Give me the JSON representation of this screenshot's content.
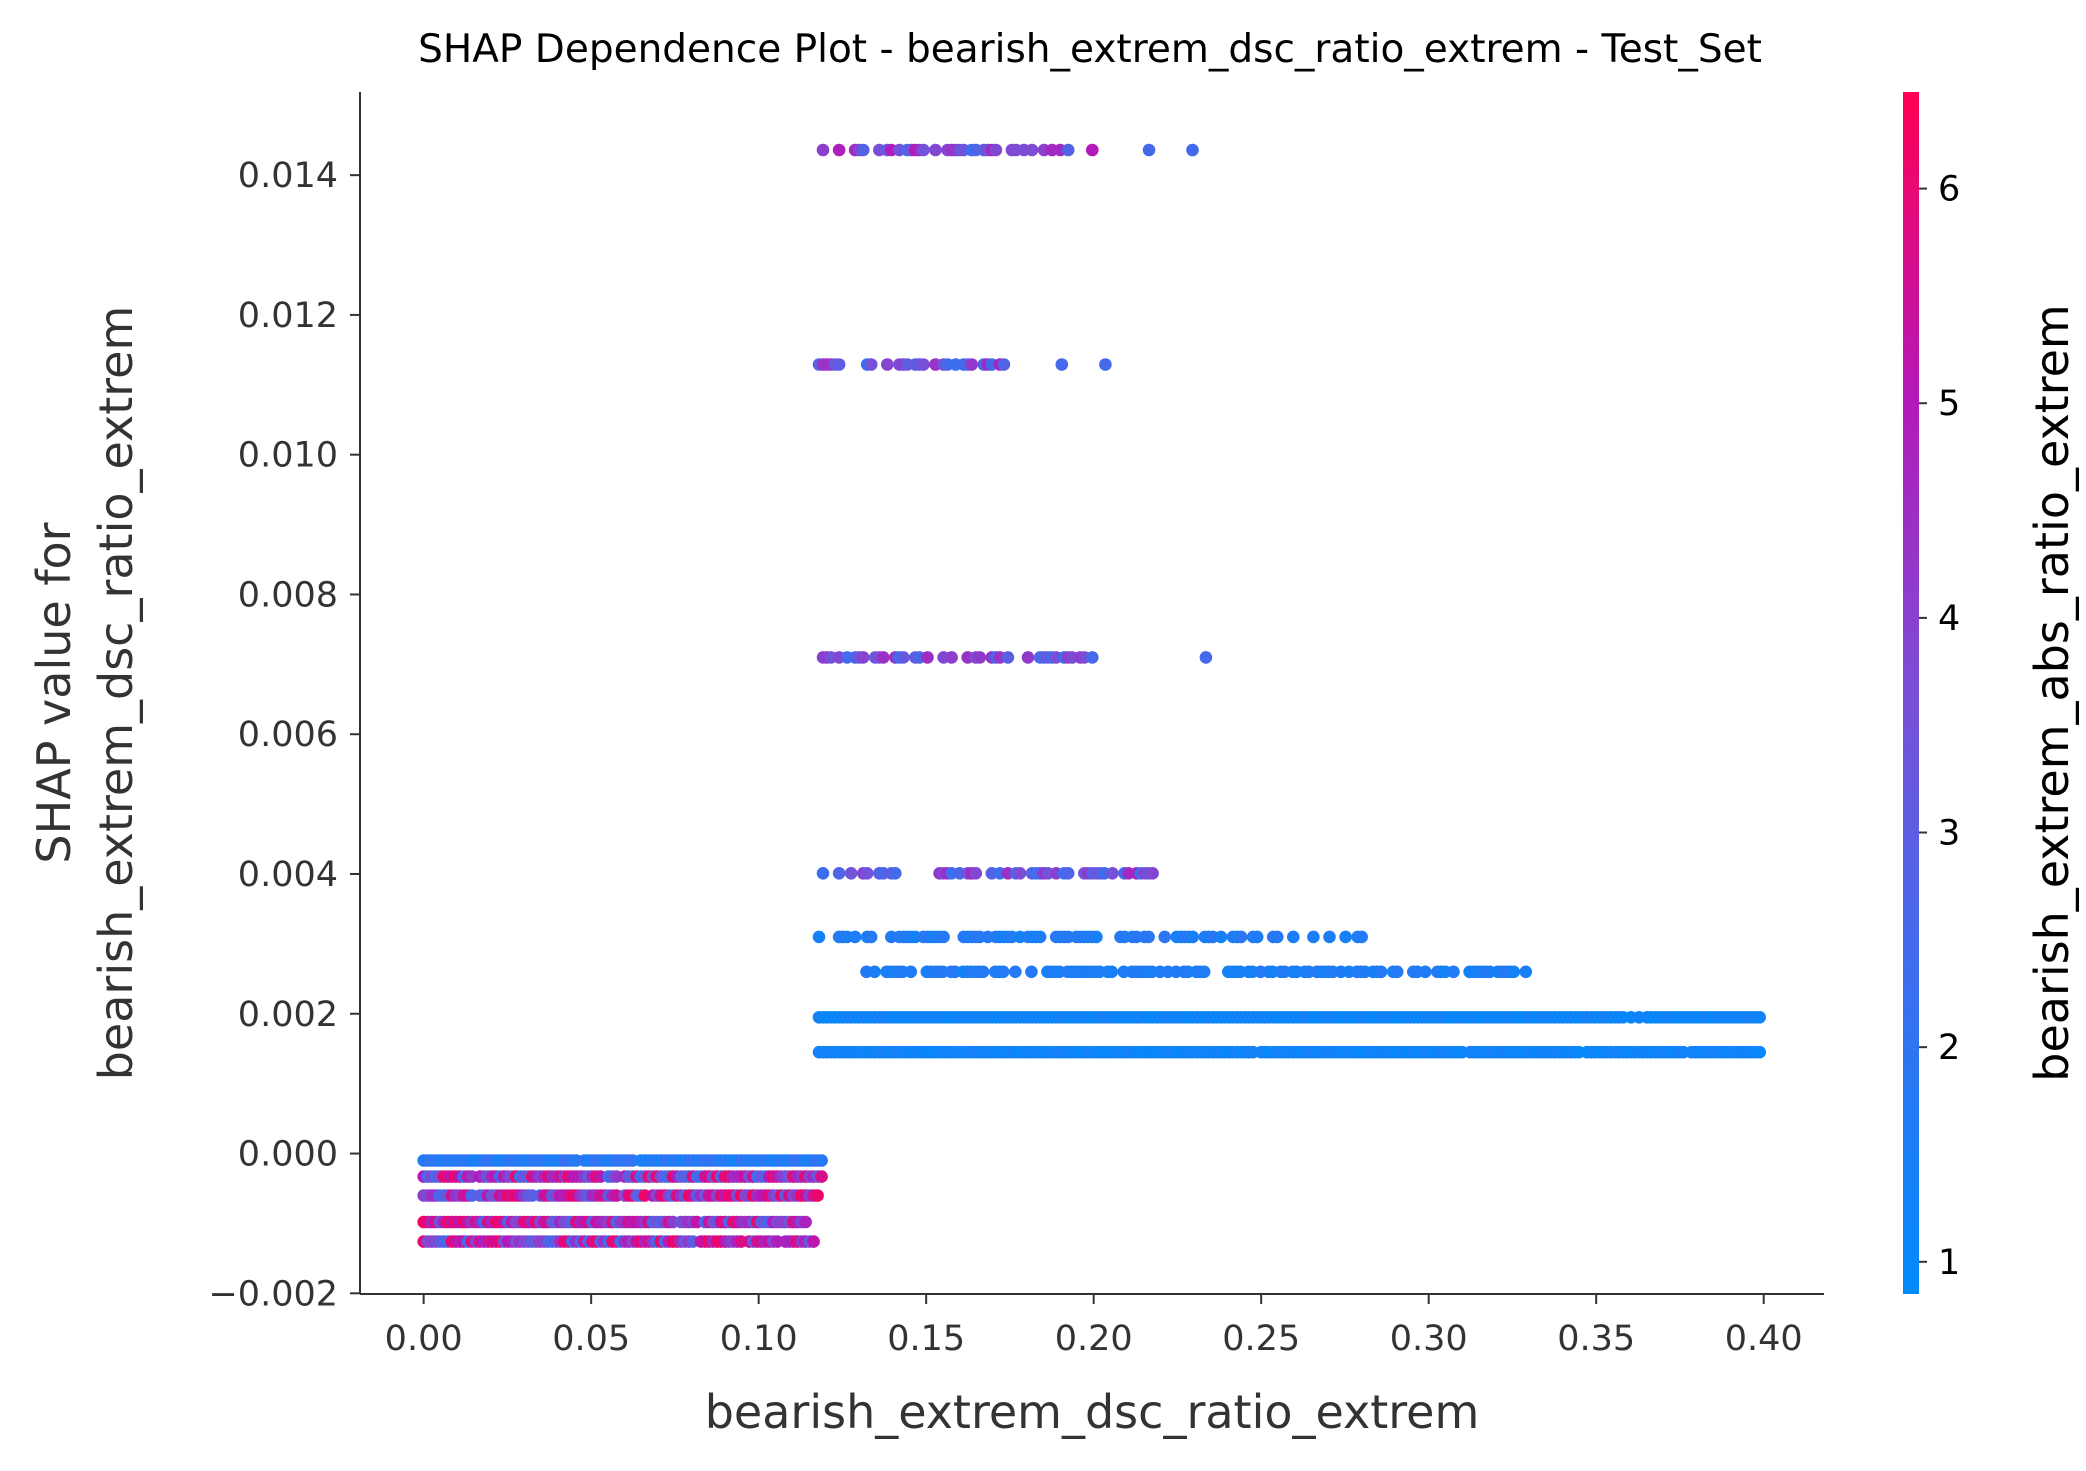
{
  "chart_data": {
    "type": "scatter",
    "title": "SHAP Dependence Plot - bearish_extrem_dsc_ratio_extrem - Test_Set",
    "xlabel": "bearish_extrem_dsc_ratio_extrem",
    "ylabel_line1": "SHAP value for",
    "ylabel_line2": "bearish_extrem_dsc_ratio_extrem",
    "colorbar_label": "bearish_extrem_abs_ratio_extrem",
    "xlim": [
      -0.019,
      0.418
    ],
    "ylim": [
      -0.00201,
      0.01519
    ],
    "x_ticks": [
      0.0,
      0.05,
      0.1,
      0.15,
      0.2,
      0.25,
      0.3,
      0.35,
      0.4
    ],
    "x_tick_labels": [
      "0.00",
      "0.05",
      "0.10",
      "0.15",
      "0.20",
      "0.25",
      "0.30",
      "0.35",
      "0.40"
    ],
    "y_ticks": [
      -0.002,
      0.0,
      0.002,
      0.004,
      0.006,
      0.008,
      0.01,
      0.012,
      0.014
    ],
    "y_tick_labels": [
      "−0.002",
      "0.000",
      "0.002",
      "0.004",
      "0.006",
      "0.008",
      "0.010",
      "0.012",
      "0.014"
    ],
    "colorbar": {
      "range": [
        0.85,
        6.45
      ],
      "ticks": [
        1,
        2,
        3,
        4,
        5,
        6
      ],
      "tick_labels": [
        "1",
        "2",
        "3",
        "4",
        "5",
        "6"
      ],
      "colors": [
        "#008bfb",
        "#3a6ff0",
        "#7a4fd6",
        "#b518b8",
        "#ff0052"
      ]
    },
    "groups": [
      {
        "y": 0.01436,
        "xmin": 0.118,
        "xmax": 0.2,
        "color_min": 2.2,
        "color_max": 5.2,
        "outliers": [
          {
            "x": 0.2165,
            "c": 2.5
          },
          {
            "x": 0.2295,
            "c": 2.5
          }
        ]
      },
      {
        "y": 0.01129,
        "xmin": 0.118,
        "xmax": 0.175,
        "color_min": 2.2,
        "color_max": 4.8,
        "outliers": [
          {
            "x": 0.1905,
            "c": 2.5
          },
          {
            "x": 0.2035,
            "c": 2.5
          }
        ]
      },
      {
        "y": 0.0071,
        "xmin": 0.118,
        "xmax": 0.203,
        "color_min": 2.2,
        "color_max": 4.6,
        "outliers": [
          {
            "x": 0.2335,
            "c": 2.5
          }
        ]
      },
      {
        "y": 0.00401,
        "xmin": 0.118,
        "xmax": 0.218,
        "color_min": 2.2,
        "color_max": 4.8,
        "outliers": []
      },
      {
        "y": 0.0031,
        "xmin": 0.118,
        "xmax": 0.282,
        "color_min": 1.3,
        "color_max": 1.9,
        "outliers": []
      },
      {
        "y": 0.0026,
        "xmin": 0.131,
        "xmax": 0.334,
        "color_min": 1.3,
        "color_max": 1.8,
        "outliers": []
      },
      {
        "y": 0.00195,
        "xmin": 0.118,
        "xmax": 0.399,
        "color_min": 1.0,
        "color_max": 1.4,
        "outliers": []
      },
      {
        "y": 0.00145,
        "xmin": 0.118,
        "xmax": 0.399,
        "color_min": 1.0,
        "color_max": 1.4,
        "outliers": []
      },
      {
        "y": -0.0001,
        "xmin": 0.0,
        "xmax": 0.119,
        "color_min": 1.3,
        "color_max": 2.2,
        "outliers": []
      },
      {
        "y": -0.00033,
        "xmin": 0.0,
        "xmax": 0.119,
        "color_min": 2.0,
        "color_max": 6.2,
        "outliers": []
      },
      {
        "y": -0.0006,
        "xmin": 0.0,
        "xmax": 0.119,
        "color_min": 2.5,
        "color_max": 6.3,
        "outliers": []
      },
      {
        "y": -0.00098,
        "xmin": 0.0,
        "xmax": 0.115,
        "color_min": 2.3,
        "color_max": 6.2,
        "outliers": []
      },
      {
        "y": -0.00126,
        "xmin": 0.0,
        "xmax": 0.117,
        "color_min": 2.2,
        "color_max": 6.2,
        "outliers": []
      }
    ]
  }
}
